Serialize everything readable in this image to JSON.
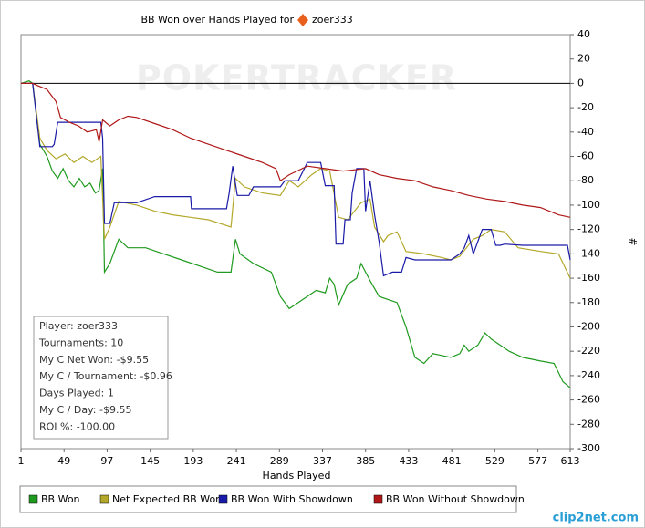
{
  "chart_data": {
    "type": "line",
    "title": "BB Won over Hands Played for",
    "player": "zoer333",
    "watermark": "POKERTRACKER",
    "xlabel": "Hands Played",
    "ylabel": "#",
    "xlim": [
      1,
      613
    ],
    "xticks": [
      1,
      49,
      97,
      145,
      193,
      241,
      289,
      337,
      385,
      433,
      481,
      529,
      577,
      613
    ],
    "ylim": [
      -300,
      40
    ],
    "yticks": [
      40,
      20,
      0,
      -20,
      -40,
      -60,
      -80,
      -100,
      -120,
      -140,
      -160,
      -180,
      -200,
      -220,
      -240,
      -260,
      -280,
      -300
    ],
    "hline": 0,
    "grid": false,
    "legend": "bottom",
    "stats": [
      "Player: zoer333",
      "Tournaments: 10",
      "My C Net Won: -$9.55",
      "My C / Tournament: -$0.96",
      "Days Played: 1",
      "My C / Day: -$9.55",
      "ROI %: -100.00"
    ],
    "footer": "clip2net.com",
    "series": [
      {
        "name": "BB Won",
        "color": "#1f9a1f",
        "x": [
          1,
          10,
          14,
          22,
          30,
          36,
          42,
          48,
          54,
          60,
          66,
          72,
          78,
          84,
          88,
          92,
          94,
          100,
          110,
          120,
          140,
          160,
          180,
          200,
          220,
          235,
          240,
          245,
          260,
          280,
          290,
          300,
          310,
          320,
          330,
          340,
          345,
          350,
          355,
          365,
          375,
          380,
          385,
          390,
          400,
          420,
          430,
          440,
          450,
          460,
          480,
          490,
          495,
          500,
          510,
          518,
          525,
          535,
          545,
          560,
          580,
          595,
          605,
          613
        ],
        "values": [
          0,
          2,
          0,
          -50,
          -60,
          -72,
          -78,
          -70,
          -80,
          -85,
          -78,
          -85,
          -82,
          -90,
          -88,
          -70,
          -155,
          -148,
          -128,
          -135,
          -135,
          -140,
          -145,
          -150,
          -155,
          -155,
          -128,
          -140,
          -148,
          -155,
          -175,
          -185,
          -180,
          -175,
          -170,
          -172,
          -160,
          -165,
          -182,
          -165,
          -160,
          -148,
          -155,
          -162,
          -175,
          -180,
          -200,
          -225,
          -230,
          -222,
          -225,
          -222,
          -215,
          -220,
          -215,
          -205,
          -210,
          -215,
          -220,
          -225,
          -228,
          -230,
          -245,
          -250
        ]
      },
      {
        "name": "Net Expected BB Won",
        "color": "#b3a82a",
        "x": [
          1,
          14,
          22,
          30,
          40,
          50,
          60,
          70,
          80,
          90,
          94,
          100,
          110,
          130,
          150,
          170,
          190,
          210,
          235,
          240,
          250,
          270,
          290,
          300,
          310,
          325,
          335,
          345,
          355,
          365,
          380,
          390,
          395,
          405,
          410,
          420,
          430,
          450,
          470,
          480,
          490,
          505,
          515,
          525,
          540,
          555,
          580,
          600,
          613
        ],
        "values": [
          0,
          0,
          -45,
          -55,
          -62,
          -58,
          -65,
          -60,
          -65,
          -60,
          -128,
          -118,
          -97,
          -100,
          -105,
          -108,
          -110,
          -112,
          -118,
          -78,
          -85,
          -90,
          -92,
          -80,
          -85,
          -75,
          -70,
          -72,
          -110,
          -112,
          -98,
          -95,
          -118,
          -130,
          -125,
          -122,
          -138,
          -140,
          -143,
          -145,
          -142,
          -128,
          -125,
          -120,
          -122,
          -135,
          -138,
          -140,
          -160
        ]
      },
      {
        "name": "BB Won With Showdown",
        "color": "#1a1aa8",
        "x": [
          1,
          14,
          22,
          36,
          38,
          42,
          74,
          90,
          92,
          94,
          100,
          105,
          130,
          150,
          190,
          191,
          230,
          233,
          237,
          242,
          255,
          260,
          290,
          295,
          310,
          320,
          335,
          340,
          350,
          352,
          360,
          362,
          368,
          370,
          375,
          383,
          385,
          390,
          395,
          400,
          405,
          415,
          425,
          430,
          440,
          480,
          490,
          495,
          500,
          505,
          510,
          515,
          525,
          530,
          535,
          540,
          560,
          580,
          610,
          613
        ],
        "values": [
          0,
          0,
          -52,
          -52,
          -50,
          -32,
          -32,
          -32,
          -45,
          -115,
          -115,
          -98,
          -98,
          -93,
          -93,
          -103,
          -103,
          -90,
          -68,
          -92,
          -92,
          -85,
          -85,
          -80,
          -80,
          -65,
          -65,
          -84,
          -84,
          -132,
          -132,
          -112,
          -112,
          -90,
          -70,
          -70,
          -105,
          -80,
          -108,
          -130,
          -158,
          -155,
          -155,
          -143,
          -145,
          -145,
          -140,
          -135,
          -125,
          -140,
          -130,
          -120,
          -120,
          -133,
          -133,
          -132,
          -133,
          -133,
          -133,
          -145
        ]
      },
      {
        "name": "BB Won Without Showdown",
        "color": "#b01818",
        "x": [
          1,
          14,
          20,
          30,
          40,
          45,
          55,
          65,
          75,
          85,
          88,
          92,
          100,
          110,
          120,
          130,
          150,
          170,
          190,
          210,
          230,
          250,
          270,
          285,
          290,
          300,
          320,
          340,
          360,
          385,
          400,
          420,
          440,
          460,
          480,
          500,
          520,
          540,
          560,
          580,
          600,
          613
        ],
        "values": [
          0,
          0,
          -2,
          -5,
          -15,
          -28,
          -32,
          -35,
          -40,
          -38,
          -48,
          -30,
          -35,
          -30,
          -27,
          -28,
          -33,
          -38,
          -45,
          -50,
          -55,
          -60,
          -65,
          -70,
          -80,
          -75,
          -68,
          -70,
          -72,
          -70,
          -75,
          -78,
          -80,
          -85,
          -88,
          -92,
          -95,
          -97,
          -100,
          -102,
          -108,
          -110
        ]
      }
    ]
  }
}
